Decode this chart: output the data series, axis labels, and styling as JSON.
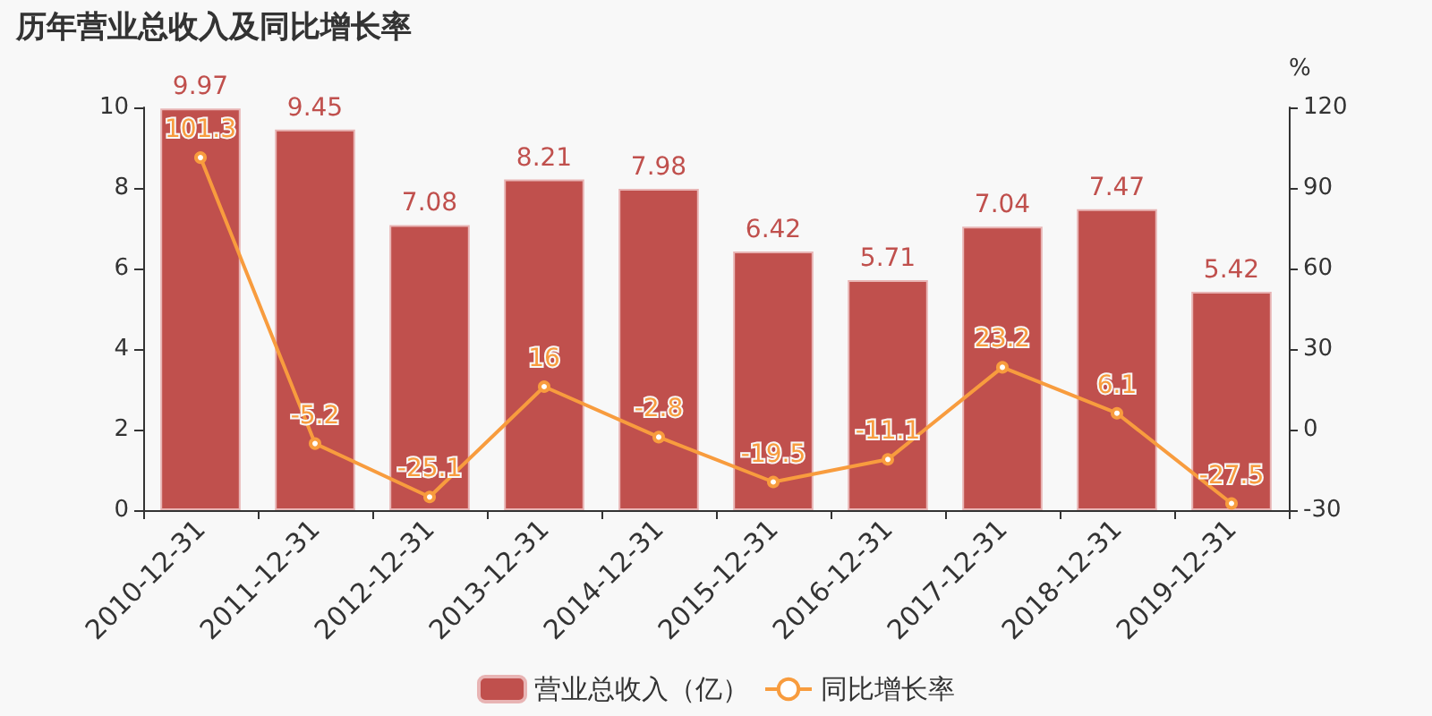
{
  "chart_data": {
    "type": "bar",
    "title": "历年营业总收入及同比增长率",
    "y2label": "%",
    "categories": [
      "2010-12-31",
      "2011-12-31",
      "2012-12-31",
      "2013-12-31",
      "2014-12-31",
      "2015-12-31",
      "2016-12-31",
      "2017-12-31",
      "2018-12-31",
      "2019-12-31"
    ],
    "series": [
      {
        "name": "营业总收入（亿）",
        "color": "#c0504d",
        "values": [
          9.97,
          9.45,
          7.08,
          8.21,
          7.98,
          6.42,
          5.71,
          7.04,
          7.47,
          5.42
        ]
      },
      {
        "name": "同比增长率",
        "type": "line",
        "axis": "y2",
        "color": "#f89c3e",
        "marker": "circle",
        "values": [
          101.3,
          -5.2,
          -25.1,
          16,
          -2.8,
          -19.5,
          -11.1,
          23.2,
          6.1,
          -27.5
        ]
      }
    ],
    "ylim": [
      0,
      10
    ],
    "yticks": [
      0,
      2,
      4,
      6,
      8,
      10
    ],
    "y2lim": [
      -30,
      120
    ],
    "y2ticks": [
      -30,
      0,
      30,
      60,
      90,
      120
    ],
    "data_labels": true,
    "grid": false,
    "legend": "bottom"
  }
}
